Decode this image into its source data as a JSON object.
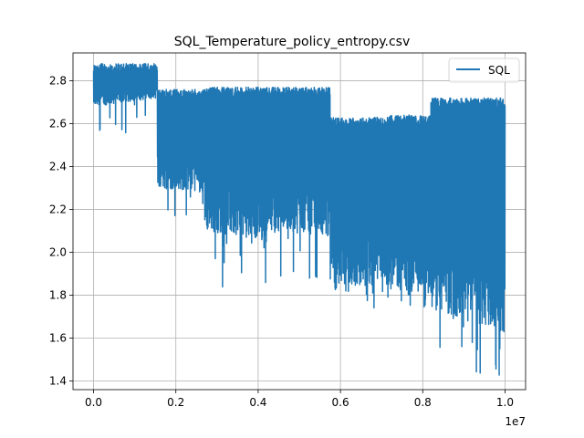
{
  "chart_data": {
    "type": "line",
    "title": "SQL_Temperature_policy_entropy.csv",
    "xlabel": "",
    "ylabel": "",
    "x_offset_label": "1e7",
    "xlim": [
      -0.05,
      1.05
    ],
    "ylim": [
      1.36,
      2.93
    ],
    "x_ticks": [
      0.0,
      0.2,
      0.4,
      0.6,
      0.8,
      1.0
    ],
    "x_tick_labels": [
      "0.0",
      "0.2",
      "0.4",
      "0.6",
      "0.8",
      "1.0"
    ],
    "y_ticks": [
      1.4,
      1.6,
      1.8,
      2.0,
      2.2,
      2.4,
      2.6,
      2.8
    ],
    "y_tick_labels": [
      "1.4",
      "1.6",
      "1.8",
      "2.0",
      "2.2",
      "2.4",
      "2.6",
      "2.8"
    ],
    "grid": true,
    "legend_position": "top-right",
    "color": "#1f77b4",
    "series": [
      {
        "name": "SQL",
        "segments": [
          {
            "x_range": [
              0.0,
              0.155
            ],
            "lower_start": 2.68,
            "lower_end": 2.72,
            "upper": 2.88,
            "min_spike": 2.53
          },
          {
            "x_range": [
              0.155,
              0.27
            ],
            "lower_start": 2.3,
            "lower_end": 2.28,
            "upper": 2.76,
            "min_spike": 2.17
          },
          {
            "x_range": [
              0.27,
              0.42
            ],
            "lower_start": 2.1,
            "lower_end": 2.05,
            "upper": 2.77,
            "min_spike": 1.83
          },
          {
            "x_range": [
              0.42,
              0.575
            ],
            "lower_start": 2.1,
            "lower_end": 2.08,
            "upper": 2.77,
            "min_spike": 1.87
          },
          {
            "x_range": [
              0.575,
              0.72
            ],
            "lower_start": 1.83,
            "lower_end": 1.85,
            "upper": 2.63,
            "min_spike": 1.71
          },
          {
            "x_range": [
              0.72,
              0.82
            ],
            "lower_start": 1.83,
            "lower_end": 1.8,
            "upper": 2.64,
            "min_spike": 1.73
          },
          {
            "x_range": [
              0.82,
              1.0
            ],
            "lower_start": 1.72,
            "lower_end": 1.62,
            "upper": 2.72,
            "min_spike": 1.42
          }
        ]
      }
    ]
  }
}
